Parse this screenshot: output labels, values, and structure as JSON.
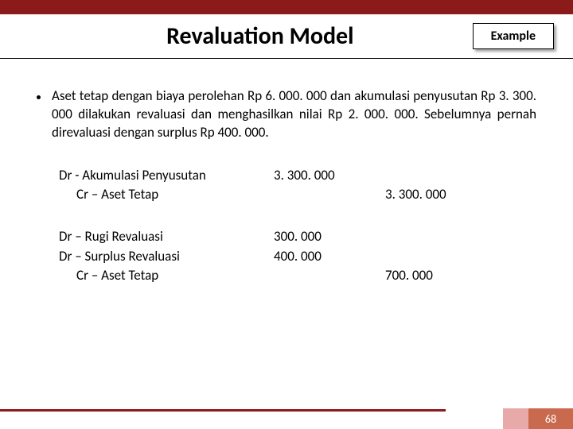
{
  "colors": {
    "top_bar": "#8b1a1a",
    "footer_line": "#8b1a1a",
    "footer_block_light": "#e8a9a9",
    "footer_block_dark": "#c96a4f",
    "badge_bg": "#ffffff",
    "text": "#000000",
    "page_number_text": "#ffffff"
  },
  "header": {
    "title": "Revaluation Model",
    "badge": "Example"
  },
  "bullet": {
    "text": "Aset tetap dengan biaya perolehan Rp 6. 000. 000 dan akumulasi penyusutan Rp 3. 300. 000 dilakukan revaluasi dan menghasilkan nilai Rp 2. 000. 000. Sebelumnya pernah direvaluasi dengan surplus Rp 400. 000."
  },
  "journal": {
    "block1": {
      "row1": {
        "account": "Dr - Akumulasi Penyusutan",
        "debit": "3. 300. 000",
        "credit": ""
      },
      "row2": {
        "account": "Cr – Aset Tetap",
        "debit": "",
        "credit": "3. 300. 000"
      }
    },
    "block2": {
      "row1": {
        "account": "Dr – Rugi Revaluasi",
        "debit": "300. 000",
        "credit": ""
      },
      "row2": {
        "account": "Dr – Surplus Revaluasi",
        "debit": "400. 000",
        "credit": ""
      },
      "row3": {
        "account": "Cr – Aset Tetap",
        "debit": "",
        "credit": "700. 000"
      }
    }
  },
  "footer": {
    "page_number": "68"
  }
}
